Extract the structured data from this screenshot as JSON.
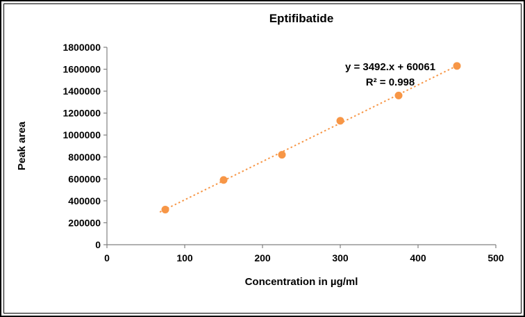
{
  "chart_data": {
    "type": "scatter",
    "title": "Eptifibatide",
    "xlabel": "Concentration in µg/ml",
    "ylabel": "Peak area",
    "x": [
      75,
      150,
      225,
      300,
      375,
      450
    ],
    "y": [
      320000,
      590000,
      820000,
      1130000,
      1360000,
      1630000
    ],
    "xlim": [
      0,
      500
    ],
    "ylim": [
      0,
      1800000
    ],
    "xticks": [
      0,
      100,
      200,
      300,
      400,
      500
    ],
    "yticks": [
      0,
      200000,
      400000,
      600000,
      800000,
      1000000,
      1200000,
      1400000,
      1600000,
      1800000
    ],
    "grid": false,
    "legend_position": "none",
    "trendline": {
      "slope": 3492,
      "intercept": 60061,
      "equation_label": "y = 3492.x + 60061",
      "r_squared_label": "R² = 0.998",
      "style": "dotted",
      "x_start": 68,
      "x_end": 453
    },
    "colors": {
      "point": "#F79646",
      "trendline": "#F79646",
      "axis": "#808080",
      "text": "#000000"
    }
  }
}
